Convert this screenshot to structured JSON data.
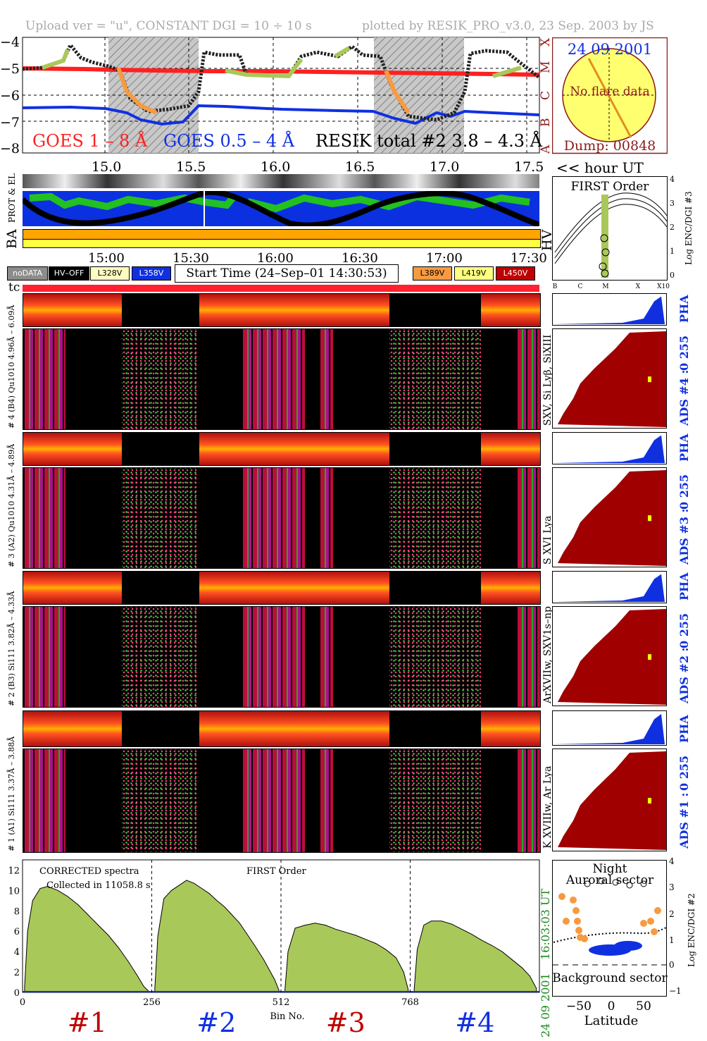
{
  "header": {
    "left": "Upload ver = \"u\", CONSTANT  DGI =  10 ÷  10 s",
    "right": "plotted by RESIK_PRO_v3.0, 23 Sep. 2003 by JS"
  },
  "goes_legend": {
    "goes_long": "GOES 1 – 8 Å",
    "goes_short": "GOES 0.5 – 4 Å",
    "resik_total": "RESIK total #2  3.8 – 4.3 Å"
  },
  "goes_y_ticks": [
    "−4",
    "−5",
    "−6",
    "−7",
    "−8"
  ],
  "goes_class_labels": [
    "X",
    "M",
    "C",
    "B",
    "A"
  ],
  "hour_ticks": [
    "15.0",
    "15.5",
    "16.0",
    "16.5",
    "17.0",
    "17.5"
  ],
  "hour_axis_label": "<< hour UT",
  "sun_panel": {
    "date": "24 09 2001",
    "note": "No flare data",
    "dump": "Dump: 00848"
  },
  "orbit_labels": {
    "prot_el": "PROT & EL",
    "ba": "BA",
    "hv": "HV"
  },
  "time_ticks": [
    "15:00",
    "15:30",
    "16:00",
    "16:30",
    "17:00",
    "17:30"
  ],
  "legend_boxes": {
    "nodata": "noDATA",
    "hvoff": "HV–OFF",
    "v1": "L328V",
    "v2": "L358V",
    "start_time": "Start Time (24–Sep–01 14:30:53)",
    "v3": "L389V",
    "v4": "L419V",
    "v5": "L450V"
  },
  "legend_colors": {
    "nodata": "#8c8c8c",
    "hvoff": "#000000",
    "v1": "#fffcc0",
    "v2": "#1030e0",
    "v3": "#f79a40",
    "v4": "#ffff80",
    "v5": "#c00000"
  },
  "tc_label": "tc",
  "channels": [
    {
      "pha_label": "# 4 (B4)  - 6.09Å",
      "spec_label": "# 4 (B4) Qu1010 4.96Å – 6.09Å",
      "lines": "SXV, Si Lyβ, SiXIII",
      "ads": "ADS #4 :",
      "range": "0 255",
      "pha": "PHA"
    },
    {
      "pha_label": "– 4.89Å",
      "spec_label": "# 3 (A2) Qu1010 4.31Å – 4.89Å",
      "lines": "S XVI Lya",
      "ads": "ADS #3 :",
      "range": "0 255",
      "pha": "PHA"
    },
    {
      "pha_label": "– 4.33Å",
      "spec_label": "# 2 (B3) Si111 3.82Å – 4.33Å",
      "lines": "ArXVIIw, SXV1s–np",
      "ads": "ADS #2 :",
      "range": "0 255",
      "pha": "PHA"
    },
    {
      "pha_label": "– 3.88Å",
      "spec_label": "# 1 (A1) Si111 3.37Å – 3.88Å",
      "lines": "K XVIIIw, Ar Lya",
      "ads": "ADS #1 :",
      "range": "0 255",
      "pha": "PHA"
    }
  ],
  "first_order_panel": {
    "title": "FIRST Order",
    "ylabel": "Log ENC/DGI #3",
    "y_ticks": [
      "4",
      "3",
      "2",
      "1",
      "0"
    ],
    "x_ticks": [
      "B",
      "C",
      "M",
      "X",
      "X10"
    ]
  },
  "latitude_panel": {
    "night": "Night",
    "auroral": "Auroral sector",
    "background": "Background sector",
    "xlabel": "Latitude",
    "ylabel": "Log ENC/DGI #2",
    "x_ticks": [
      "−50",
      "0",
      "50"
    ],
    "y_ticks": [
      "4",
      "3",
      "2",
      "1",
      "0",
      "−1"
    ]
  },
  "spectrum_time": "16:03:03 UT",
  "spectrum_date": "24 09 2001",
  "chart_data": {
    "type": "area",
    "title": "CORRECTED spectra",
    "subtitle": "Collected in 11058.8 s",
    "annotation": "FIRST Order",
    "xlabel": "Bin No.",
    "ylabel": "",
    "x_ticks": [
      0,
      256,
      512,
      768
    ],
    "y_ticks": [
      0,
      2,
      4,
      6,
      8,
      10,
      12
    ],
    "xlim": [
      0,
      1024
    ],
    "ylim": [
      0,
      13
    ],
    "channel_labels": [
      "#1",
      "#2",
      "#3",
      "#4"
    ],
    "channel_colors": [
      "#c00000",
      "#1030e0",
      "#c00000",
      "#1030e0"
    ],
    "fill_color": "#a9c85a",
    "series": [
      {
        "name": "#1",
        "x": [
          4,
          10,
          20,
          35,
          50,
          70,
          90,
          110,
          130,
          150,
          170,
          190,
          210,
          228,
          240,
          250
        ],
        "values": [
          0.5,
          6.0,
          9.0,
          10.2,
          10.4,
          10.0,
          9.4,
          8.6,
          7.6,
          6.6,
          5.6,
          4.4,
          3.0,
          1.6,
          0.6,
          0.1
        ]
      },
      {
        "name": "#2",
        "x": [
          262,
          268,
          280,
          295,
          310,
          325,
          340,
          355,
          370,
          385,
          400,
          415,
          430,
          445,
          460,
          478,
          500,
          508
        ],
        "values": [
          0.3,
          5.5,
          9.2,
          10.0,
          10.5,
          11.0,
          10.7,
          10.2,
          9.7,
          9.0,
          8.4,
          7.6,
          6.8,
          5.7,
          4.6,
          3.2,
          1.2,
          0.2
        ]
      },
      {
        "name": "#3",
        "x": [
          520,
          526,
          540,
          560,
          580,
          600,
          620,
          640,
          660,
          680,
          700,
          720,
          740,
          755,
          764
        ],
        "values": [
          0.3,
          4.0,
          6.3,
          6.6,
          6.8,
          6.6,
          6.2,
          5.9,
          5.6,
          5.2,
          4.8,
          4.2,
          3.4,
          2.0,
          0.3
        ]
      },
      {
        "name": "#4",
        "x": [
          776,
          782,
          795,
          810,
          830,
          850,
          870,
          890,
          910,
          930,
          950,
          970,
          990,
          1005,
          1018
        ],
        "values": [
          0.3,
          4.2,
          6.6,
          7.0,
          7.0,
          6.7,
          6.2,
          5.7,
          5.1,
          4.6,
          4.0,
          3.2,
          2.4,
          1.6,
          0.4
        ]
      }
    ]
  }
}
